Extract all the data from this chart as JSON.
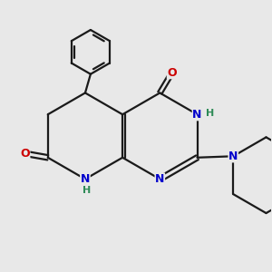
{
  "background_color": "#e8e8e8",
  "bond_color": "#1a1a1a",
  "n_color": "#0000cc",
  "o_color": "#cc0000",
  "h_color": "#2e8b57",
  "line_width": 1.6,
  "figsize": [
    3.0,
    3.0
  ],
  "dpi": 100,
  "xlim": [
    0,
    10
  ],
  "ylim": [
    0,
    10
  ]
}
